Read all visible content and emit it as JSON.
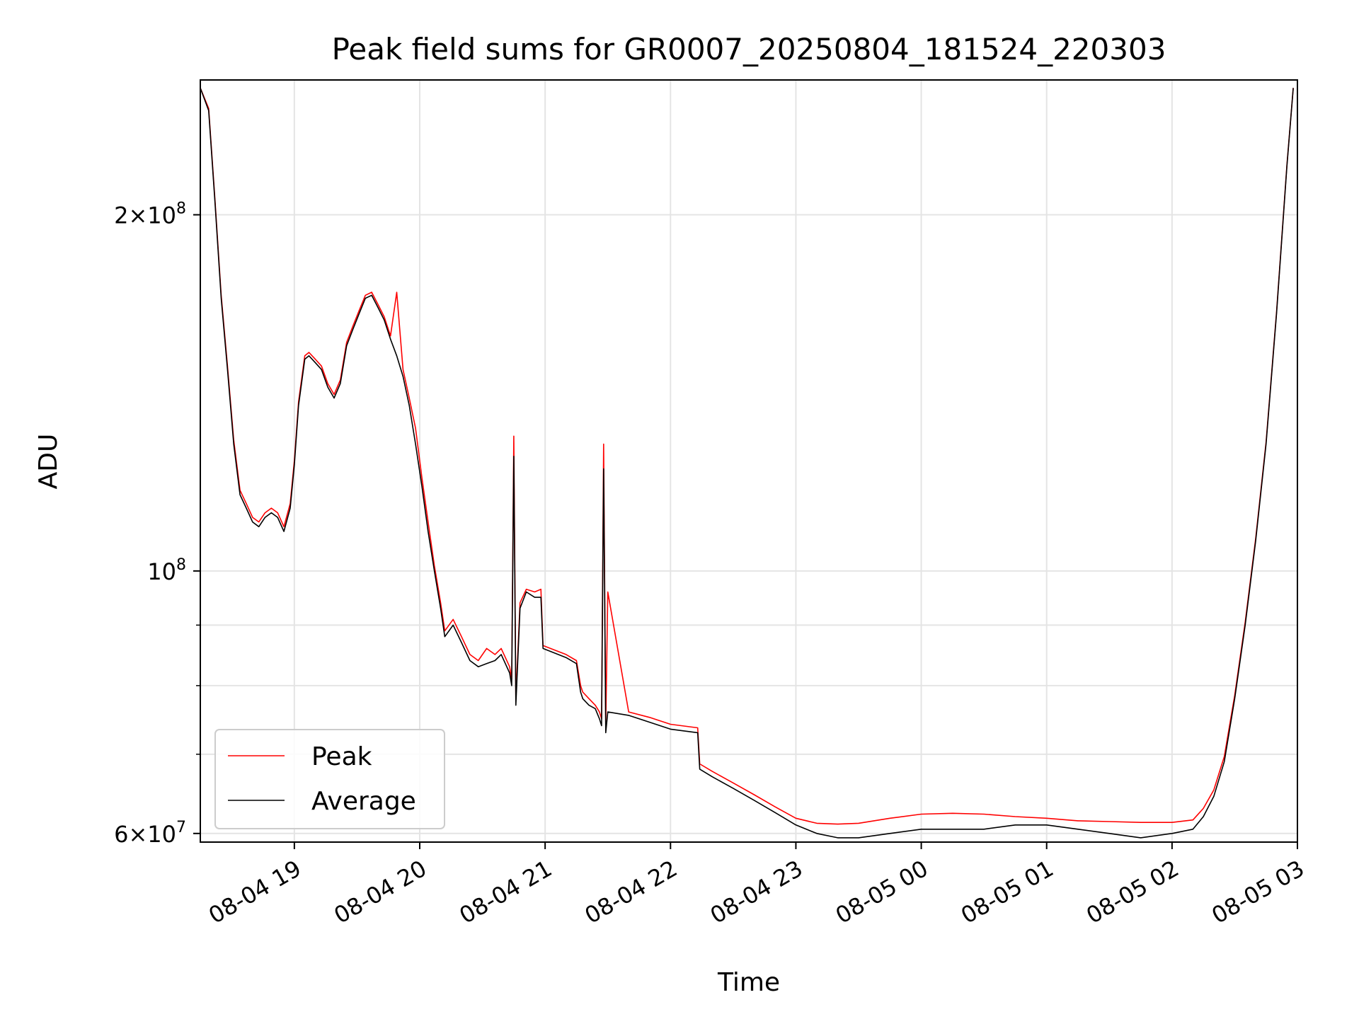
{
  "chart_data": {
    "type": "line",
    "title": "Peak field sums for GR0007_20250804_181524_220303",
    "xlabel": "Time",
    "ylabel": "ADU",
    "yscale": "log",
    "grid": true,
    "legend_location": "lower left",
    "x_range": [
      "2025-08-04 18:15",
      "2025-08-05 03:00"
    ],
    "y_range": [
      59000000,
      260000000
    ],
    "x_ticks": [
      {
        "value": "2025-08-04 19:00",
        "label": "08-04 19"
      },
      {
        "value": "2025-08-04 20:00",
        "label": "08-04 20"
      },
      {
        "value": "2025-08-04 21:00",
        "label": "08-04 21"
      },
      {
        "value": "2025-08-04 22:00",
        "label": "08-04 22"
      },
      {
        "value": "2025-08-04 23:00",
        "label": "08-04 23"
      },
      {
        "value": "2025-08-05 00:00",
        "label": "08-05 00"
      },
      {
        "value": "2025-08-05 01:00",
        "label": "08-05 01"
      },
      {
        "value": "2025-08-05 02:00",
        "label": "08-05 02"
      },
      {
        "value": "2025-08-05 03:00",
        "label": "08-05 03"
      }
    ],
    "y_major_ticks": [
      {
        "value": 60000000,
        "mantissa": "6",
        "exponent": "7"
      },
      {
        "value": 100000000,
        "mantissa": "",
        "exponent": "8"
      },
      {
        "value": 200000000,
        "mantissa": "2",
        "exponent": "8"
      }
    ],
    "y_minor_ticks": [
      70000000,
      80000000,
      90000000
    ],
    "series": [
      {
        "name": "Average",
        "color": "#000000",
        "x": [
          "2025-08-04 18:15",
          "2025-08-04 18:19",
          "2025-08-04 18:22",
          "2025-08-04 18:25",
          "2025-08-04 18:28",
          "2025-08-04 18:31",
          "2025-08-04 18:34",
          "2025-08-04 18:37",
          "2025-08-04 18:40",
          "2025-08-04 18:43",
          "2025-08-04 18:46",
          "2025-08-04 18:49",
          "2025-08-04 18:52",
          "2025-08-04 18:55",
          "2025-08-04 18:58",
          "2025-08-04 19:00",
          "2025-08-04 19:02",
          "2025-08-04 19:05",
          "2025-08-04 19:07",
          "2025-08-04 19:10",
          "2025-08-04 19:13",
          "2025-08-04 19:16",
          "2025-08-04 19:19",
          "2025-08-04 19:22",
          "2025-08-04 19:25",
          "2025-08-04 19:28",
          "2025-08-04 19:31",
          "2025-08-04 19:34",
          "2025-08-04 19:37",
          "2025-08-04 19:40",
          "2025-08-04 19:43",
          "2025-08-04 19:46",
          "2025-08-04 19:49",
          "2025-08-04 19:52",
          "2025-08-04 19:55",
          "2025-08-04 19:58",
          "2025-08-04 20:01",
          "2025-08-04 20:04",
          "2025-08-04 20:07",
          "2025-08-04 20:10",
          "2025-08-04 20:12",
          "2025-08-04 20:16",
          "2025-08-04 20:20",
          "2025-08-04 20:24",
          "2025-08-04 20:28",
          "2025-08-04 20:32",
          "2025-08-04 20:36",
          "2025-08-04 20:39",
          "2025-08-04 20:43",
          "2025-08-04 20:44",
          "2025-08-04 20:45",
          "2025-08-04 20:46",
          "2025-08-04 20:48",
          "2025-08-04 20:51",
          "2025-08-04 20:55",
          "2025-08-04 20:58",
          "2025-08-04 20:59",
          "2025-08-04 21:10",
          "2025-08-04 21:15",
          "2025-08-04 21:17",
          "2025-08-04 21:18",
          "2025-08-04 21:21",
          "2025-08-04 21:24",
          "2025-08-04 21:26",
          "2025-08-04 21:27",
          "2025-08-04 21:28",
          "2025-08-04 21:29",
          "2025-08-04 21:30",
          "2025-08-04 21:40",
          "2025-08-04 21:50",
          "2025-08-04 22:00",
          "2025-08-04 22:13",
          "2025-08-04 22:14",
          "2025-08-04 22:20",
          "2025-08-04 22:30",
          "2025-08-04 22:40",
          "2025-08-04 22:50",
          "2025-08-04 23:00",
          "2025-08-04 23:10",
          "2025-08-04 23:20",
          "2025-08-04 23:30",
          "2025-08-04 23:45",
          "2025-08-05 00:00",
          "2025-08-05 00:15",
          "2025-08-05 00:30",
          "2025-08-05 00:45",
          "2025-08-05 01:00",
          "2025-08-05 01:15",
          "2025-08-05 01:30",
          "2025-08-05 01:45",
          "2025-08-05 02:00",
          "2025-08-05 02:10",
          "2025-08-05 02:15",
          "2025-08-05 02:20",
          "2025-08-05 02:25",
          "2025-08-05 02:30",
          "2025-08-05 02:35",
          "2025-08-05 02:40",
          "2025-08-05 02:45",
          "2025-08-05 02:50",
          "2025-08-05 02:55",
          "2025-08-05 02:58"
        ],
        "values": [
          256000000,
          245000000,
          205000000,
          170000000,
          148000000,
          128000000,
          116000000,
          113000000,
          110000000,
          109000000,
          111000000,
          112000000,
          111000000,
          108000000,
          113000000,
          123000000,
          138000000,
          151000000,
          152000000,
          150000000,
          148000000,
          143000000,
          140000000,
          144000000,
          155000000,
          160000000,
          165000000,
          170000000,
          171000000,
          167000000,
          163000000,
          157000000,
          152000000,
          146000000,
          138000000,
          128000000,
          118000000,
          108000000,
          100000000,
          93000000,
          88000000,
          90000000,
          87000000,
          84000000,
          83000000,
          83500000,
          84000000,
          85000000,
          82000000,
          80000000,
          125000000,
          77000000,
          93000000,
          96000000,
          95000000,
          95000000,
          86000000,
          84500000,
          83500000,
          79000000,
          78000000,
          77000000,
          76500000,
          75000000,
          74000000,
          122000000,
          73000000,
          76000000,
          75500000,
          74500000,
          73500000,
          73000000,
          68000000,
          67000000,
          65500000,
          64000000,
          62500000,
          61000000,
          60000000,
          59500000,
          59500000,
          60000000,
          60500000,
          60500000,
          60500000,
          61000000,
          61000000,
          60500000,
          60000000,
          59500000,
          60000000,
          60500000,
          62000000,
          64500000,
          69000000,
          78000000,
          90000000,
          106000000,
          128000000,
          165000000,
          220000000,
          256000000
        ]
      },
      {
        "name": "Peak",
        "color": "#ff0000",
        "x": [
          "2025-08-04 18:15",
          "2025-08-04 18:19",
          "2025-08-04 18:22",
          "2025-08-04 18:25",
          "2025-08-04 18:28",
          "2025-08-04 18:31",
          "2025-08-04 18:34",
          "2025-08-04 18:37",
          "2025-08-04 18:40",
          "2025-08-04 18:43",
          "2025-08-04 18:46",
          "2025-08-04 18:49",
          "2025-08-04 18:52",
          "2025-08-04 18:55",
          "2025-08-04 18:58",
          "2025-08-04 19:00",
          "2025-08-04 19:02",
          "2025-08-04 19:05",
          "2025-08-04 19:07",
          "2025-08-04 19:10",
          "2025-08-04 19:13",
          "2025-08-04 19:16",
          "2025-08-04 19:19",
          "2025-08-04 19:22",
          "2025-08-04 19:25",
          "2025-08-04 19:28",
          "2025-08-04 19:31",
          "2025-08-04 19:34",
          "2025-08-04 19:37",
          "2025-08-04 19:40",
          "2025-08-04 19:43",
          "2025-08-04 19:46",
          "2025-08-04 19:49",
          "2025-08-04 19:52",
          "2025-08-04 19:55",
          "2025-08-04 19:58",
          "2025-08-04 20:01",
          "2025-08-04 20:04",
          "2025-08-04 20:07",
          "2025-08-04 20:10",
          "2025-08-04 20:12",
          "2025-08-04 20:16",
          "2025-08-04 20:20",
          "2025-08-04 20:24",
          "2025-08-04 20:28",
          "2025-08-04 20:32",
          "2025-08-04 20:36",
          "2025-08-04 20:39",
          "2025-08-04 20:43",
          "2025-08-04 20:44",
          "2025-08-04 20:45",
          "2025-08-04 20:46",
          "2025-08-04 20:48",
          "2025-08-04 20:51",
          "2025-08-04 20:55",
          "2025-08-04 20:58",
          "2025-08-04 20:59",
          "2025-08-04 21:10",
          "2025-08-04 21:15",
          "2025-08-04 21:17",
          "2025-08-04 21:18",
          "2025-08-04 21:21",
          "2025-08-04 21:24",
          "2025-08-04 21:26",
          "2025-08-04 21:27",
          "2025-08-04 21:28",
          "2025-08-04 21:29",
          "2025-08-04 21:30",
          "2025-08-04 21:40",
          "2025-08-04 21:50",
          "2025-08-04 22:00",
          "2025-08-04 22:13",
          "2025-08-04 22:14",
          "2025-08-04 22:20",
          "2025-08-04 22:30",
          "2025-08-04 22:40",
          "2025-08-04 22:50",
          "2025-08-04 23:00",
          "2025-08-04 23:10",
          "2025-08-04 23:20",
          "2025-08-04 23:30",
          "2025-08-04 23:45",
          "2025-08-05 00:00",
          "2025-08-05 00:15",
          "2025-08-05 00:30",
          "2025-08-05 00:45",
          "2025-08-05 01:00",
          "2025-08-05 01:15",
          "2025-08-05 01:30",
          "2025-08-05 01:45",
          "2025-08-05 02:00",
          "2025-08-05 02:10",
          "2025-08-05 02:15",
          "2025-08-05 02:20",
          "2025-08-05 02:25",
          "2025-08-05 02:30",
          "2025-08-05 02:35",
          "2025-08-05 02:40",
          "2025-08-05 02:45",
          "2025-08-05 02:50",
          "2025-08-05 02:55",
          "2025-08-05 02:58"
        ],
        "values": [
          256000000,
          246000000,
          206000000,
          171000000,
          149000000,
          129000000,
          117000000,
          114000000,
          111000000,
          110000000,
          112000000,
          113000000,
          112000000,
          109000000,
          114000000,
          124000000,
          139000000,
          152000000,
          153000000,
          151000000,
          149000000,
          144000000,
          141000000,
          145000000,
          156000000,
          161000000,
          166000000,
          171000000,
          172000000,
          168000000,
          164000000,
          158000000,
          172000000,
          148000000,
          140000000,
          132000000,
          120000000,
          110000000,
          101000000,
          94000000,
          89000000,
          91000000,
          88000000,
          85000000,
          84000000,
          86000000,
          85000000,
          86000000,
          83000000,
          81000000,
          130000000,
          78000000,
          94000000,
          96500000,
          96000000,
          96500000,
          86500000,
          85000000,
          84000000,
          80000000,
          79000000,
          78000000,
          77000000,
          76000000,
          75000000,
          128000000,
          74000000,
          96000000,
          76000000,
          75200000,
          74200000,
          73700000,
          68700000,
          67700000,
          66200000,
          64700000,
          63200000,
          61800000,
          61200000,
          61100000,
          61200000,
          61800000,
          62300000,
          62400000,
          62300000,
          62000000,
          61800000,
          61500000,
          61400000,
          61300000,
          61300000,
          61600000,
          63000000,
          65300000,
          69700000,
          78500000,
          90500000,
          106500000,
          128500000,
          165500000,
          220500000,
          256000000
        ]
      }
    ]
  }
}
